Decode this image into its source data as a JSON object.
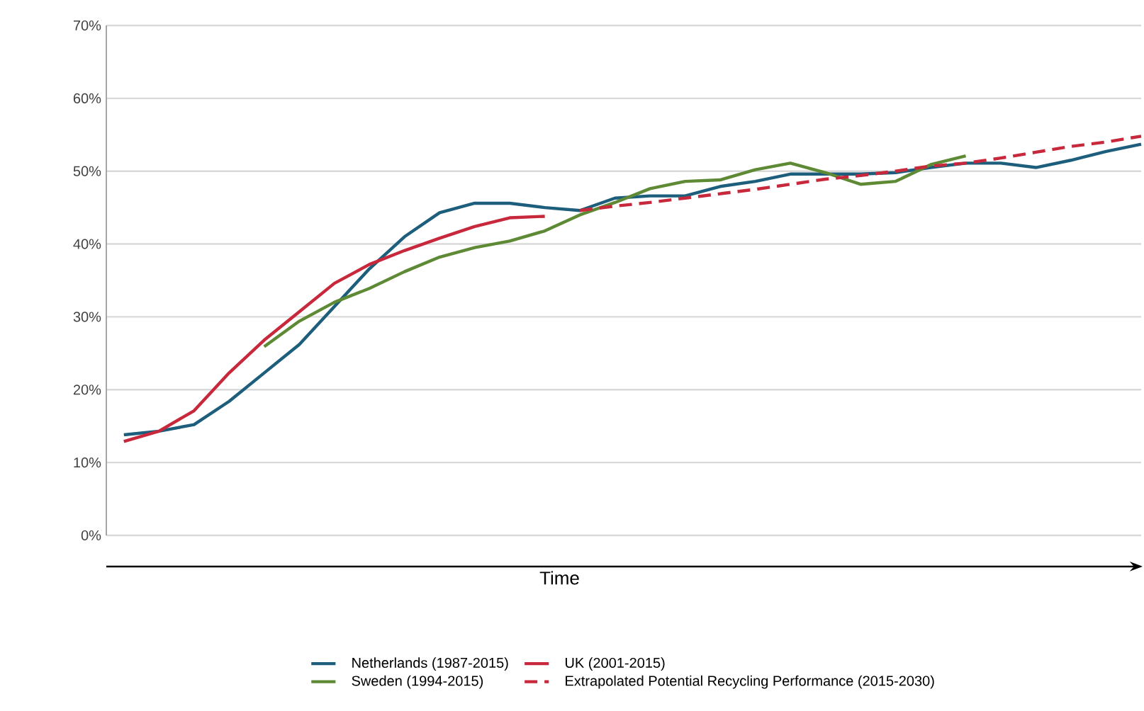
{
  "chart_data": {
    "type": "line",
    "xlabel": "Time",
    "categories": [
      null,
      null,
      null,
      null,
      null,
      null,
      null,
      null,
      null,
      null,
      null,
      null,
      null,
      null,
      null,
      null,
      null,
      null,
      null,
      null,
      null,
      null,
      null,
      null,
      null,
      null,
      null,
      null,
      null,
      null
    ],
    "ylim": [
      0,
      70
    ],
    "yticks": [
      {
        "value": 0,
        "label": "0%"
      },
      {
        "value": 10,
        "label": "10%"
      },
      {
        "value": 20,
        "label": "20%"
      },
      {
        "value": 30,
        "label": "30%"
      },
      {
        "value": 40,
        "label": "40%"
      },
      {
        "value": 50,
        "label": "50%"
      },
      {
        "value": 60,
        "label": "60%"
      },
      {
        "value": 70,
        "label": "70%"
      }
    ],
    "grid": "y",
    "legend": "bottom",
    "tick_labels": "y",
    "marker": "none",
    "series": [
      {
        "name": "Netherlands (1987-2015)",
        "color": "#1c5e7c",
        "line_style": "solid",
        "values": [
          13.8,
          14.3,
          15.2,
          18.4,
          22.3,
          26.2,
          31.4,
          36.6,
          41,
          44.3,
          45.6,
          45.6,
          45,
          44.6,
          46.3,
          46.6,
          46.6,
          47.9,
          48.6,
          49.6,
          49.6,
          49.6,
          49.8,
          50.5,
          51.1,
          51.1,
          50.5,
          51.5,
          52.7,
          53.7
        ]
      },
      {
        "name": "UK (2001-2015)",
        "color": "#c8283c",
        "line_style": "solid",
        "values": [
          12.9,
          14.3,
          17.1,
          22.3,
          26.8,
          30.7,
          34.6,
          37.2,
          39.1,
          40.8,
          42.4,
          43.6,
          43.8,
          null,
          null,
          null,
          null,
          null,
          null,
          null,
          null,
          null,
          null,
          null,
          null,
          null,
          null,
          null,
          null,
          null
        ]
      },
      {
        "name": "Sweden (1994-2015)",
        "color": "#5f8a35",
        "line_style": "solid",
        "values": [
          null,
          null,
          null,
          null,
          25.9,
          29.4,
          32,
          33.9,
          36.2,
          38.2,
          39.5,
          40.4,
          41.8,
          44,
          45.7,
          47.6,
          48.6,
          48.8,
          50.2,
          51.1,
          49.8,
          48.2,
          48.6,
          50.9,
          52.1,
          null,
          null,
          null,
          null,
          null
        ]
      },
      {
        "name": "Extrapolated Potential Recycling Performance (2015-2030)",
        "color": "#c8283c",
        "line_style": "dashed",
        "values": [
          null,
          null,
          null,
          null,
          null,
          null,
          null,
          null,
          null,
          null,
          null,
          null,
          null,
          44.6,
          45.2,
          45.7,
          46.3,
          46.9,
          47.5,
          48.2,
          48.9,
          49.4,
          50,
          50.7,
          51.1,
          51.8,
          52.6,
          53.4,
          54,
          54.8
        ]
      }
    ]
  }
}
